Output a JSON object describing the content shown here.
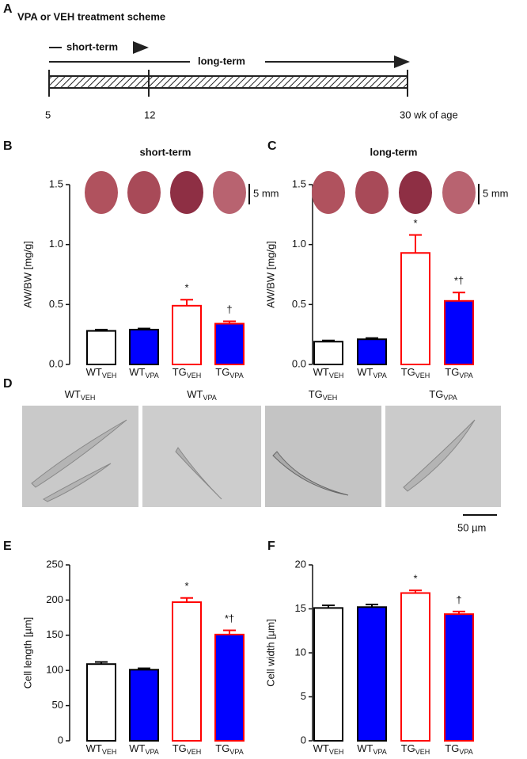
{
  "scheme": {
    "panel": "A",
    "title": "VPA or VEH treatment scheme",
    "short_label": "short-term",
    "long_label": "long-term",
    "ticks": [
      "5",
      "12",
      "30 wk of age"
    ]
  },
  "micrographs": {
    "panel": "D",
    "labels": [
      "WT",
      "WT",
      "TG",
      "TG"
    ],
    "subscripts": [
      "VEH",
      "VPA",
      "VEH",
      "VPA"
    ],
    "scale_bar": "50 µm"
  },
  "chart_data": [
    {
      "type": "bar",
      "panel": "B",
      "title": "short-term",
      "ylabel": "AW/BW [mg/g]",
      "scale_bar": "5 mm",
      "categories": [
        "WT",
        "WT",
        "TG",
        "TG"
      ],
      "category_subscripts": [
        "VEH",
        "VPA",
        "VEH",
        "VPA"
      ],
      "values": [
        0.28,
        0.29,
        0.49,
        0.34
      ],
      "errors": [
        0.01,
        0.01,
        0.05,
        0.02
      ],
      "annotations": [
        null,
        null,
        "*",
        "†"
      ],
      "colors": [
        "#ffffff",
        "#0000ff",
        "#ffffff",
        "#0000ff"
      ],
      "edge_colors": [
        "#000000",
        "#000000",
        "#ff0000",
        "#ff0000"
      ],
      "ylim": [
        0,
        1.5
      ],
      "yticks": [
        {
          "value": 0,
          "label": "0.0"
        },
        0.5,
        {
          "value": 1,
          "label": "1.0"
        },
        1.5
      ]
    },
    {
      "type": "bar",
      "panel": "C",
      "title": "long-term",
      "ylabel": "AW/BW [mg/g]",
      "scale_bar": "5 mm",
      "categories": [
        "WT",
        "WT",
        "TG",
        "TG"
      ],
      "category_subscripts": [
        "VEH",
        "VPA",
        "VEH",
        "VPA"
      ],
      "values": [
        0.19,
        0.21,
        0.93,
        0.53
      ],
      "errors": [
        0.01,
        0.01,
        0.15,
        0.07
      ],
      "annotations": [
        null,
        null,
        "*",
        "*†"
      ],
      "colors": [
        "#ffffff",
        "#0000ff",
        "#ffffff",
        "#0000ff"
      ],
      "edge_colors": [
        "#000000",
        "#000000",
        "#ff0000",
        "#ff0000"
      ],
      "ylim": [
        0,
        1.5
      ],
      "yticks": [
        {
          "value": 0,
          "label": "0.0"
        },
        0.5,
        {
          "value": 1,
          "label": "1.0"
        },
        1.5
      ]
    },
    {
      "type": "bar",
      "panel": "E",
      "ylabel": "Cell length [µm]",
      "categories": [
        "WT",
        "WT",
        "TG",
        "TG"
      ],
      "category_subscripts": [
        "VEH",
        "VPA",
        "VEH",
        "VPA"
      ],
      "values": [
        109,
        101,
        197,
        151
      ],
      "errors": [
        3,
        2,
        6,
        6
      ],
      "annotations": [
        null,
        null,
        "*",
        "*†"
      ],
      "colors": [
        "#ffffff",
        "#0000ff",
        "#ffffff",
        "#0000ff"
      ],
      "edge_colors": [
        "#000000",
        "#000000",
        "#ff0000",
        "#ff0000"
      ],
      "ylim": [
        0,
        250
      ],
      "yticks": [
        0,
        50,
        100,
        150,
        200,
        250
      ]
    },
    {
      "type": "bar",
      "panel": "F",
      "ylabel": "Cell width [µm]",
      "categories": [
        "WT",
        "WT",
        "TG",
        "TG"
      ],
      "category_subscripts": [
        "VEH",
        "VPA",
        "VEH",
        "VPA"
      ],
      "values": [
        15.1,
        15.2,
        16.8,
        14.4
      ],
      "errors": [
        0.3,
        0.3,
        0.3,
        0.3
      ],
      "annotations": [
        null,
        null,
        "*",
        "†"
      ],
      "colors": [
        "#ffffff",
        "#0000ff",
        "#ffffff",
        "#0000ff"
      ],
      "edge_colors": [
        "#000000",
        "#000000",
        "#ff0000",
        "#ff0000"
      ],
      "ylim": [
        0,
        20
      ],
      "yticks": [
        0,
        5,
        10,
        15,
        20
      ]
    }
  ]
}
